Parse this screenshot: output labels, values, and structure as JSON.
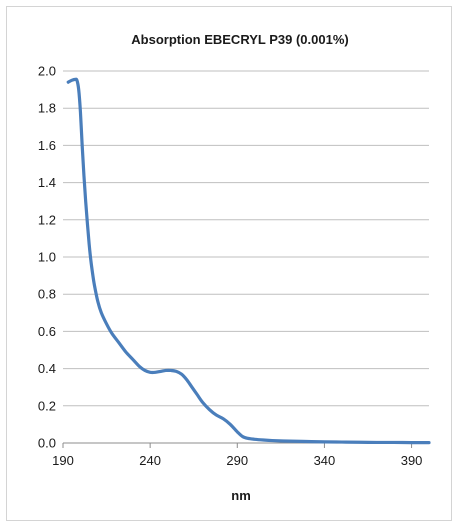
{
  "chart_data": {
    "type": "line",
    "title": "Absorption  EBECRYL P39 (0.001%)",
    "xlabel": "nm",
    "ylabel": "",
    "xlim": [
      190,
      400
    ],
    "ylim": [
      0,
      2.0
    ],
    "x_ticks": [
      190,
      240,
      290,
      340,
      390
    ],
    "x_tick_labels": [
      "190",
      "240",
      "290",
      "340",
      "390"
    ],
    "y_ticks": [
      0,
      0.2,
      0.4,
      0.6,
      0.8,
      1.0,
      1.2,
      1.4,
      1.6,
      1.8,
      2.0
    ],
    "y_tick_labels": [
      "0.0",
      "0.2",
      "0.4",
      "0.6",
      "0.8",
      "1.0",
      "1.2",
      "1.4",
      "1.6",
      "1.8",
      "2.0"
    ],
    "grid": "horizontal",
    "legend": "none",
    "colors": {
      "series": "#4a7ebb",
      "grid": "#bfbfbf"
    },
    "series": [
      {
        "x": [
          193,
          195,
          197,
          198,
          199,
          200,
          201,
          202,
          203,
          204,
          205,
          206,
          207,
          208,
          210,
          212,
          215,
          218,
          222,
          226,
          230,
          234,
          237,
          240,
          243,
          246,
          249,
          252,
          255,
          258,
          261,
          264,
          267,
          270,
          274,
          278,
          282,
          286,
          290,
          293,
          296,
          300,
          305,
          310,
          320,
          330,
          340,
          350,
          360,
          370,
          380,
          390,
          400
        ],
        "y": [
          1.94,
          1.95,
          1.955,
          1.95,
          1.9,
          1.78,
          1.6,
          1.44,
          1.3,
          1.18,
          1.07,
          0.98,
          0.91,
          0.85,
          0.76,
          0.7,
          0.64,
          0.59,
          0.54,
          0.49,
          0.45,
          0.41,
          0.39,
          0.38,
          0.38,
          0.385,
          0.39,
          0.39,
          0.385,
          0.37,
          0.34,
          0.3,
          0.26,
          0.22,
          0.18,
          0.15,
          0.13,
          0.1,
          0.06,
          0.035,
          0.025,
          0.02,
          0.016,
          0.013,
          0.01,
          0.008,
          0.006,
          0.005,
          0.004,
          0.003,
          0.003,
          0.002,
          0.002
        ]
      }
    ]
  }
}
